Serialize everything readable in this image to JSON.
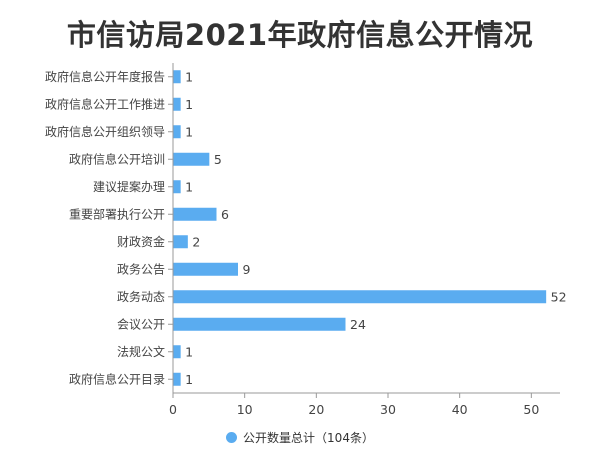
{
  "chart_data": {
    "type": "bar",
    "orientation": "horizontal",
    "title": "市信访局2021年政府信息公开情况",
    "categories": [
      "政府信息公开年度报告",
      "政府信息公开工作推进",
      "政府信息公开组织领导",
      "政府信息公开培训",
      "建议提案办理",
      "重要部署执行公开",
      "财政资金",
      "政务公告",
      "政务动态",
      "会议公开",
      "法规公文",
      "政府信息公开目录"
    ],
    "series": [
      {
        "name": "公开数量总计（104条）",
        "values": [
          1,
          1,
          1,
          5,
          1,
          6,
          2,
          9,
          52,
          24,
          1,
          1
        ]
      }
    ],
    "xlim": [
      0,
      54
    ],
    "x_ticks": [
      0,
      10,
      20,
      30,
      40,
      50
    ],
    "grid": false,
    "legend_position": "bottom",
    "data_labels": true,
    "colors": {
      "bar": "#5aacf0",
      "axis": "#999999",
      "label": "#444444",
      "title": "#333333"
    }
  }
}
